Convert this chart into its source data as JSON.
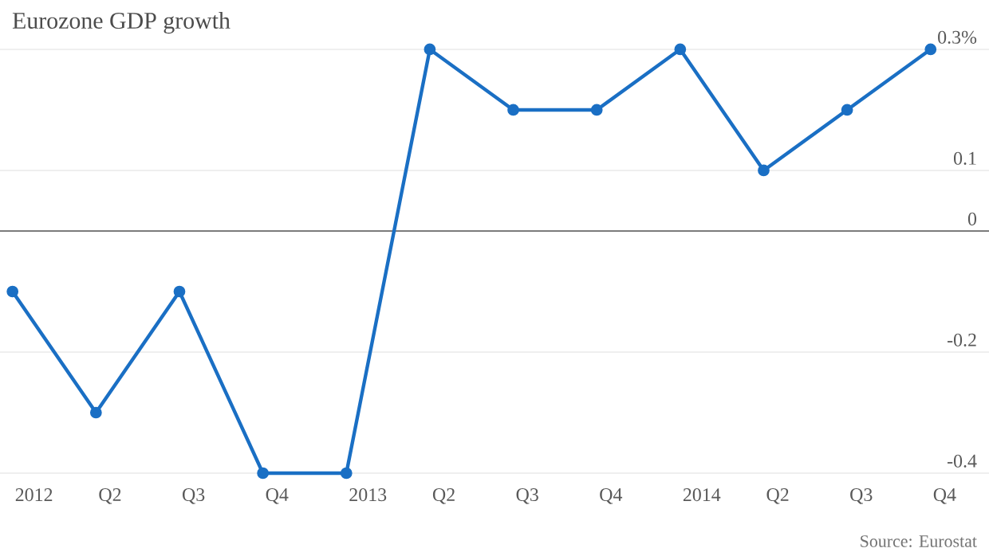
{
  "chart_data": {
    "type": "line",
    "title": "Eurozone GDP growth",
    "categories": [
      "2012",
      "Q2",
      "Q3",
      "Q4",
      "2013",
      "Q2",
      "Q3",
      "Q4",
      "2014",
      "Q2",
      "Q3",
      "Q4"
    ],
    "series": [
      {
        "color": "#1a6fc4",
        "values": [
          -0.1,
          -0.3,
          -0.1,
          -0.4,
          -0.4,
          0.3,
          0.2,
          0.2,
          0.3,
          0.1,
          0.2,
          0.3
        ]
      }
    ],
    "ylim": [
      -0.4,
      0.3
    ],
    "yticks": [
      {
        "value": 0.3,
        "label": "0.3%"
      },
      0.1,
      0,
      -0.2,
      -0.4
    ],
    "grid": "y",
    "marker": "circle",
    "line_style": "solid",
    "ref_lines": [
      {
        "axis": "y",
        "value": 0,
        "color": "#555555"
      }
    ],
    "annotations": [
      "Source: Eurostat"
    ]
  }
}
